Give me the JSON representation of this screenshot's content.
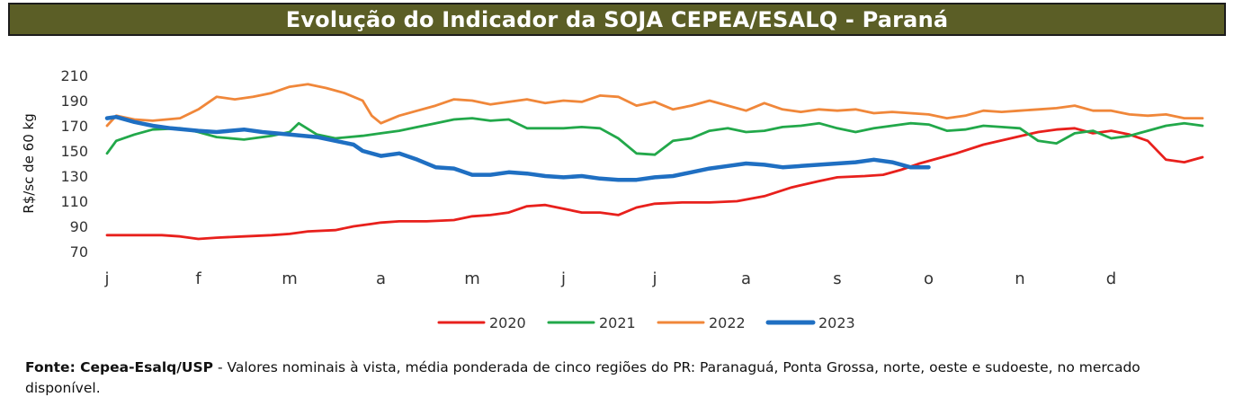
{
  "title": "Evolução do Indicador da SOJA CEPEA/ESALQ - Paraná",
  "source_label": "Fonte: Cepea-Esalq/USP",
  "source_text": " - Valores nominais à vista, média ponderada de cinco regiões do PR: Paranaguá, Ponta Grossa, norte, oeste e sudoeste, no mercado disponível.",
  "chart_data": {
    "type": "line",
    "title": "Evolução do Indicador da SOJA CEPEA/ESALQ - Paraná",
    "ylabel": "R$/sc de 60 kg",
    "xlabel": "",
    "ylim": [
      70,
      210
    ],
    "yticks": [
      70,
      90,
      110,
      130,
      150,
      170,
      190,
      210
    ],
    "month_labels": [
      "j",
      "f",
      "m",
      "a",
      "m",
      "j",
      "j",
      "a",
      "s",
      "o",
      "n",
      "d"
    ],
    "grid": false,
    "legend_position": "bottom",
    "x_unit": "month (1 = start of january, 13 = end of december)",
    "series": [
      {
        "name": "2020",
        "color": "#e8201c",
        "x": [
          1.0,
          1.3,
          1.6,
          1.8,
          2.0,
          2.2,
          2.5,
          2.8,
          3.0,
          3.2,
          3.5,
          3.7,
          3.9,
          4.0,
          4.2,
          4.5,
          4.8,
          5.0,
          5.2,
          5.4,
          5.6,
          5.8,
          6.0,
          6.2,
          6.4,
          6.6,
          6.8,
          7.0,
          7.3,
          7.6,
          7.9,
          8.2,
          8.5,
          8.8,
          9.0,
          9.3,
          9.5,
          9.7,
          9.9,
          10.1,
          10.3,
          10.6,
          10.9,
          11.2,
          11.4,
          11.6,
          11.8,
          12.0,
          12.2,
          12.4,
          12.6,
          12.8,
          13.0
        ],
        "y": [
          83,
          83,
          83,
          82,
          80,
          81,
          82,
          83,
          84,
          86,
          87,
          90,
          92,
          93,
          94,
          94,
          95,
          98,
          99,
          101,
          106,
          107,
          104,
          101,
          101,
          99,
          105,
          108,
          109,
          109,
          110,
          114,
          121,
          126,
          129,
          130,
          131,
          135,
          140,
          144,
          148,
          155,
          160,
          165,
          167,
          168,
          164,
          166,
          163,
          158,
          143,
          141,
          145
        ]
      },
      {
        "name": "2021",
        "color": "#22a84a",
        "x": [
          1.0,
          1.1,
          1.3,
          1.5,
          1.8,
          2.0,
          2.2,
          2.5,
          2.8,
          3.0,
          3.1,
          3.3,
          3.5,
          3.8,
          4.0,
          4.2,
          4.4,
          4.6,
          4.8,
          5.0,
          5.2,
          5.4,
          5.6,
          5.8,
          6.0,
          6.2,
          6.4,
          6.6,
          6.8,
          7.0,
          7.2,
          7.4,
          7.6,
          7.8,
          8.0,
          8.2,
          8.4,
          8.6,
          8.8,
          9.0,
          9.2,
          9.4,
          9.6,
          9.8,
          10.0,
          10.2,
          10.4,
          10.6,
          10.8,
          11.0,
          11.2,
          11.4,
          11.6,
          11.8,
          12.0,
          12.2,
          12.4,
          12.6,
          12.8,
          13.0
        ],
        "y": [
          148,
          158,
          163,
          167,
          168,
          165,
          161,
          159,
          162,
          165,
          172,
          163,
          160,
          162,
          164,
          166,
          169,
          172,
          175,
          176,
          174,
          175,
          168,
          168,
          168,
          169,
          168,
          160,
          148,
          147,
          158,
          160,
          166,
          168,
          165,
          166,
          169,
          170,
          172,
          168,
          165,
          168,
          170,
          172,
          171,
          166,
          167,
          170,
          169,
          168,
          158,
          156,
          164,
          166,
          160,
          162,
          166,
          170,
          172,
          170
        ]
      },
      {
        "name": "2022",
        "color": "#f0873a",
        "x": [
          1.0,
          1.1,
          1.3,
          1.5,
          1.8,
          2.0,
          2.2,
          2.4,
          2.6,
          2.8,
          3.0,
          3.2,
          3.4,
          3.6,
          3.8,
          3.9,
          4.0,
          4.2,
          4.4,
          4.6,
          4.8,
          5.0,
          5.2,
          5.4,
          5.6,
          5.8,
          6.0,
          6.2,
          6.4,
          6.6,
          6.8,
          7.0,
          7.2,
          7.4,
          7.6,
          7.8,
          8.0,
          8.2,
          8.4,
          8.6,
          8.8,
          9.0,
          9.2,
          9.4,
          9.6,
          9.8,
          10.0,
          10.2,
          10.4,
          10.6,
          10.8,
          11.0,
          11.2,
          11.4,
          11.6,
          11.8,
          12.0,
          12.2,
          12.4,
          12.6,
          12.8,
          13.0
        ],
        "y": [
          170,
          178,
          175,
          174,
          176,
          183,
          193,
          191,
          193,
          196,
          201,
          203,
          200,
          196,
          190,
          178,
          172,
          178,
          182,
          186,
          191,
          190,
          187,
          189,
          191,
          188,
          190,
          189,
          194,
          193,
          186,
          189,
          183,
          186,
          190,
          186,
          182,
          188,
          183,
          181,
          183,
          182,
          183,
          180,
          181,
          180,
          179,
          176,
          178,
          182,
          181,
          182,
          183,
          184,
          186,
          182,
          182,
          179,
          178,
          179,
          176,
          176
        ]
      },
      {
        "name": "2023",
        "color": "#1f6fc2",
        "x": [
          1.0,
          1.1,
          1.3,
          1.5,
          1.7,
          2.0,
          2.2,
          2.5,
          2.7,
          3.0,
          3.3,
          3.5,
          3.7,
          3.8,
          4.0,
          4.2,
          4.4,
          4.6,
          4.8,
          5.0,
          5.2,
          5.4,
          5.6,
          5.8,
          6.0,
          6.2,
          6.4,
          6.6,
          6.8,
          7.0,
          7.2,
          7.4,
          7.6,
          7.8,
          8.0,
          8.2,
          8.4,
          8.6,
          8.8,
          9.0,
          9.2,
          9.4,
          9.6,
          9.8,
          10.0
        ],
        "y": [
          176,
          177,
          173,
          170,
          168,
          166,
          165,
          167,
          165,
          163,
          161,
          158,
          155,
          150,
          146,
          148,
          143,
          137,
          136,
          131,
          131,
          133,
          132,
          130,
          129,
          130,
          128,
          127,
          127,
          129,
          130,
          133,
          136,
          138,
          140,
          139,
          137,
          138,
          139,
          140,
          141,
          143,
          141,
          137,
          137
        ]
      }
    ]
  }
}
